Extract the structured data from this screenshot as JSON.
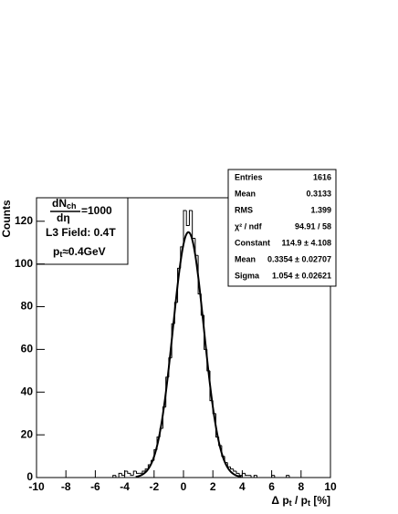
{
  "chart_data": {
    "type": "histogram",
    "x_label_parts": [
      "Δ p",
      "t",
      " / p",
      "t",
      " [%]"
    ],
    "y_label": "Counts",
    "bins": [
      -10,
      -9.8,
      -9.6,
      -9.4,
      -9.2,
      -9,
      -8.8,
      -8.6,
      -8.4,
      -8.2,
      -8,
      -7.8,
      -7.6,
      -7.4,
      -7.2,
      -7,
      -6.8,
      -6.6,
      -6.4,
      -6.2,
      -6,
      -5.8,
      -5.6,
      -5.4,
      -5.2,
      -5,
      -4.8,
      -4.6,
      -4.4,
      -4.2,
      -4,
      -3.8,
      -3.6,
      -3.4,
      -3.2,
      -3,
      -2.8,
      -2.6,
      -2.4,
      -2.2,
      -2,
      -1.8,
      -1.6,
      -1.4,
      -1.2,
      -1,
      -0.8,
      -0.6,
      -0.4,
      -0.2,
      0,
      0.2,
      0.4,
      0.6,
      0.8,
      1,
      1.2,
      1.4,
      1.6,
      1.8,
      2,
      2.2,
      2.4,
      2.6,
      2.8,
      3,
      3.2,
      3.4,
      3.6,
      3.8,
      4,
      4.2,
      4.4,
      4.6,
      4.8,
      5,
      5.2,
      5.4,
      5.6,
      5.8,
      6,
      6.2,
      6.4,
      6.6,
      6.8,
      7,
      7.2,
      7.4,
      7.6,
      7.8,
      8,
      8.2,
      8.4,
      8.6,
      8.8,
      9,
      9.2,
      9.4,
      9.6,
      9.8,
      10
    ],
    "values": [
      0,
      0,
      0,
      0,
      0,
      0,
      0,
      0,
      0,
      0,
      0,
      0,
      0,
      0,
      0,
      0,
      0,
      0,
      0,
      0,
      0,
      0,
      0,
      0,
      0,
      0,
      1,
      0,
      2,
      1,
      3,
      2,
      1,
      3,
      2,
      2,
      3,
      4,
      6,
      8,
      13,
      19,
      23,
      33,
      47,
      56,
      72,
      82,
      98,
      108,
      125,
      118,
      125,
      112,
      104,
      86,
      76,
      60,
      50,
      36,
      30,
      19,
      15,
      10,
      7,
      5,
      4,
      3,
      2,
      1,
      2,
      1,
      1,
      0,
      1,
      0,
      0,
      0,
      0,
      0,
      1,
      0,
      0,
      0,
      0,
      1,
      0,
      0,
      0,
      0,
      0,
      0,
      0,
      0,
      0,
      0,
      0,
      0,
      0,
      0
    ],
    "color": "#000000",
    "fit": {
      "constant": 114.9,
      "mean": 0.3354,
      "sigma": 1.054
    },
    "xlim": [
      -10,
      10
    ],
    "xticks": [
      -10,
      -8,
      -6,
      -4,
      -2,
      0,
      2,
      4,
      6,
      8,
      10
    ],
    "ylim": [
      0,
      131
    ],
    "yticks": [
      0,
      20,
      40,
      60,
      80,
      100,
      120
    ],
    "stats": [
      [
        "Entries",
        "1616"
      ],
      [
        "Mean",
        "0.3133"
      ],
      [
        "RMS",
        "1.399"
      ],
      [
        "χ² / ndf",
        "94.91 / 58"
      ],
      [
        "Constant",
        "114.9 ± 4.108"
      ],
      [
        "Mean",
        "0.3354 ± 0.02707"
      ],
      [
        "Sigma",
        "1.054 ± 0.02621"
      ]
    ],
    "legend": {
      "numerator": "dN",
      "numerator_sub": "ch",
      "denominator": "dη",
      "suffix": "=1000",
      "field": "L3 Field: 0.4T",
      "pt": "p",
      "pt_sub": "t",
      "pt_suffix": "≈0.4GeV"
    }
  }
}
